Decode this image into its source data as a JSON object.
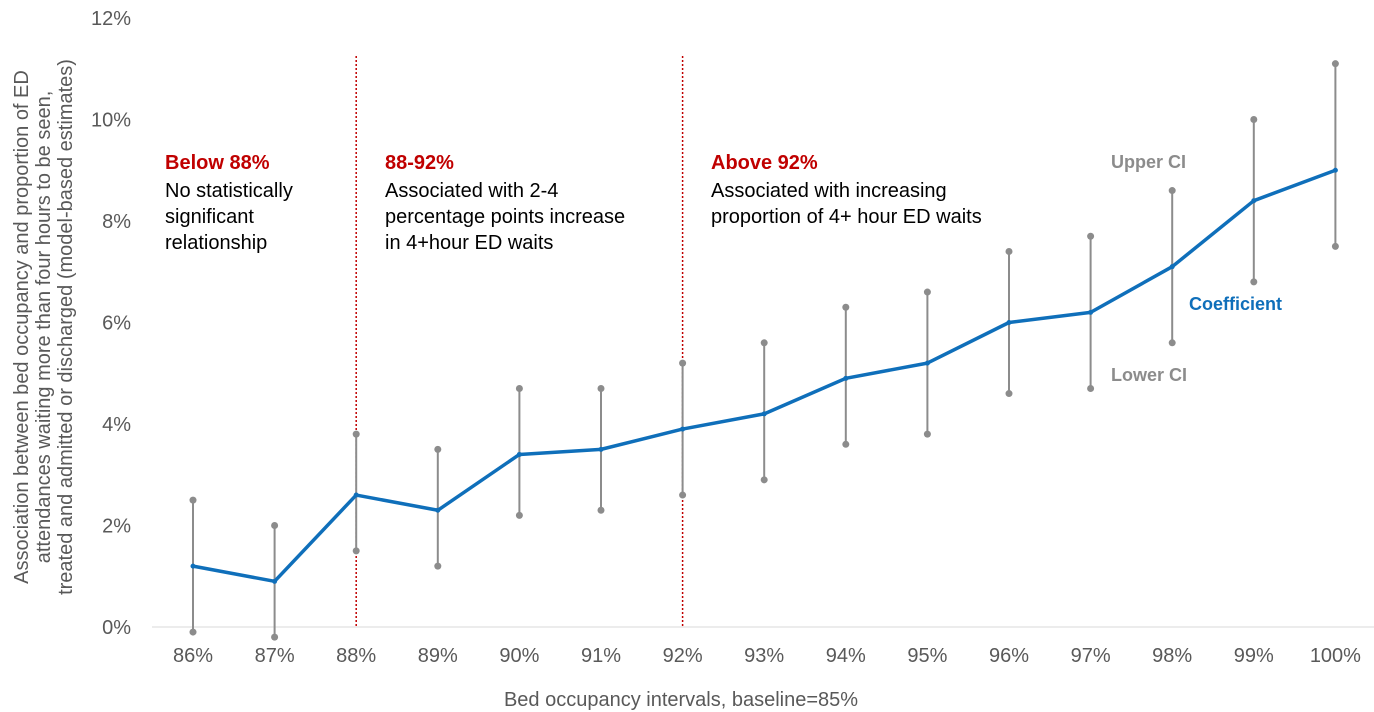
{
  "chart_data": {
    "type": "line",
    "xlabel": "Bed occupancy intervals, baseline=85%",
    "ylabel_lines": [
      "Association between bed occupancy and proportion of ED",
      "attendances waiting more than four hours to be seen,",
      "treated and admitted or discharged (model-based estimates)"
    ],
    "ylim": [
      0,
      12
    ],
    "yticks": [
      0,
      2,
      4,
      6,
      8,
      10,
      12
    ],
    "ytick_labels": [
      "0%",
      "2%",
      "4%",
      "6%",
      "8%",
      "10%",
      "12%"
    ],
    "categories": [
      "86%",
      "87%",
      "88%",
      "89%",
      "90%",
      "91%",
      "92%",
      "93%",
      "94%",
      "95%",
      "96%",
      "97%",
      "98%",
      "99%",
      "100%"
    ],
    "series": [
      {
        "name": "Coefficient",
        "values": [
          1.2,
          0.9,
          2.6,
          2.3,
          3.4,
          3.5,
          3.9,
          4.2,
          4.9,
          5.2,
          6.0,
          6.2,
          7.1,
          8.4,
          9.0
        ]
      },
      {
        "name": "Upper CI",
        "values": [
          2.5,
          2.0,
          3.8,
          3.5,
          4.7,
          4.7,
          5.2,
          5.6,
          6.3,
          6.6,
          7.4,
          7.7,
          8.6,
          10.0,
          11.1
        ]
      },
      {
        "name": "Lower CI",
        "values": [
          -0.1,
          -0.2,
          1.5,
          1.2,
          2.2,
          2.3,
          2.6,
          2.9,
          3.6,
          3.8,
          4.6,
          4.7,
          5.6,
          6.8,
          7.5
        ]
      }
    ],
    "threshold_lines": [
      "88%",
      "92%"
    ],
    "annotations": [
      {
        "id": "below88",
        "title": "Below 88%",
        "lines": [
          "No statistically",
          "significant",
          "relationship"
        ]
      },
      {
        "id": "88to92",
        "title": "88-92%",
        "lines": [
          "Associated with 2-4",
          "percentage points increase",
          "in 4+hour ED waits"
        ]
      },
      {
        "id": "above92",
        "title": "Above 92%",
        "lines": [
          "Associated with increasing",
          "proportion of 4+ hour ED waits"
        ]
      }
    ],
    "series_labels": {
      "upper": "Upper CI",
      "coefficient": "Coefficient",
      "lower": "Lower CI"
    },
    "colors": {
      "coefficient": "#0f6fba",
      "ci": "#8c8c8c",
      "threshold": "#c00000",
      "annotation_title": "#c00000"
    },
    "grid": false
  }
}
